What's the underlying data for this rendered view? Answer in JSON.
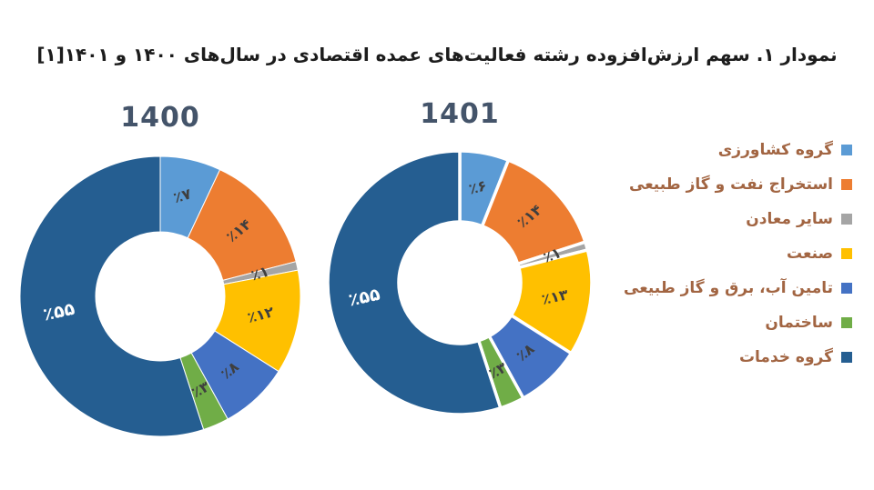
{
  "title": "نمودار ۱. سهم ارزش‌افزوده رشته فعالیت‌های عمده اقتصادی در سال‌های ۱۴۰۰ و ۱۴۰۱[۱]",
  "colors": {
    "title_text": "#1c1c1c",
    "chart_year_text": "#44546A",
    "legend_text": "#A26542",
    "slice_label_dark": "#3f3f3f",
    "slice_label_light": "#ffffff",
    "background": "#ffffff"
  },
  "legend": {
    "position": "right",
    "items": [
      {
        "label": "گروه کشاورزی",
        "color": "#5B9BD5"
      },
      {
        "label": "استخراج نفت و گاز طبیعی",
        "color": "#ED7D31"
      },
      {
        "label": "سایر معادن",
        "color": "#A5A5A5"
      },
      {
        "label": "صنعت",
        "color": "#FFC000"
      },
      {
        "label": "تامین آب، برق و گاز طبیعی",
        "color": "#4472C4"
      },
      {
        "label": "ساختمان",
        "color": "#70AD47"
      },
      {
        "label": "گروه خدمات",
        "color": "#255E91"
      }
    ]
  },
  "chart_data": {
    "type": "pie",
    "subtype": "donut",
    "title": "نمودار ۱. سهم ارزش‌افزوده رشته فعالیت‌های عمده اقتصادی در سال‌های ۱۴۰۰ و ۱۴۰۱[۱]",
    "categories": [
      "گروه کشاورزی",
      "استخراج نفت و گاز طبیعی",
      "سایر معادن",
      "صنعت",
      "تامین آب، برق و گاز طبیعی",
      "ساختمان",
      "گروه خدمات"
    ],
    "colors": [
      "#5B9BD5",
      "#ED7D31",
      "#A5A5A5",
      "#FFC000",
      "#4472C4",
      "#70AD47",
      "#255E91"
    ],
    "unit": "percent",
    "start_angle": "top",
    "direction": "clockwise",
    "legend_position": "right",
    "charts": [
      {
        "title": "1400",
        "values": [
          7,
          14,
          1,
          12,
          8,
          3,
          55
        ],
        "labels": [
          "٪۷",
          "٪۱۴",
          "٪۱",
          "٪۱۲",
          "٪۸",
          "٪۳",
          "٪۵۵"
        ]
      },
      {
        "title": "1401",
        "values": [
          6,
          14,
          1,
          13,
          8,
          3,
          55
        ],
        "labels": [
          "٪۶",
          "٪۱۴",
          "٪۱",
          "٪۱۳",
          "٪۸",
          "٪۳",
          "٪۵۵"
        ]
      }
    ]
  }
}
